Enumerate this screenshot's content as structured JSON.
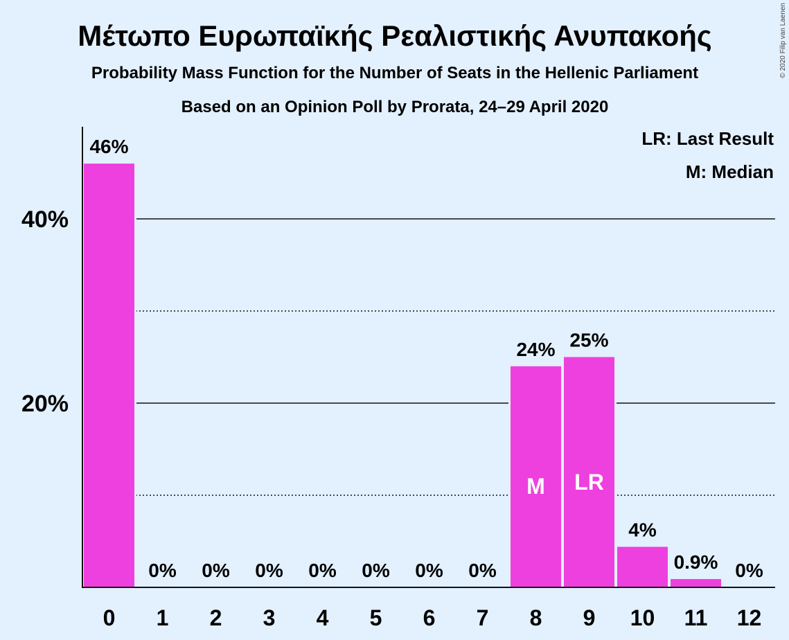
{
  "title": "Μέτωπο Ευρωπαϊκής Ρεαλιστικής Ανυπακοής",
  "subtitle1": "Probability Mass Function for the Number of Seats in the Hellenic Parliament",
  "subtitle2": "Based on an Opinion Poll by Prorata, 24–29 April 2020",
  "legend": {
    "lr": "LR: Last Result",
    "m": "M: Median"
  },
  "copyright": "© 2020 Filip van Laenen",
  "colors": {
    "bar": "#ee40de",
    "background": "#e3f0fd",
    "axis": "#111111"
  },
  "chart_data": {
    "type": "bar",
    "categories": [
      "0",
      "1",
      "2",
      "3",
      "4",
      "5",
      "6",
      "7",
      "8",
      "9",
      "10",
      "11",
      "12"
    ],
    "values": [
      46,
      0,
      0,
      0,
      0,
      0,
      0,
      0,
      24,
      25,
      4.4,
      0.9,
      0
    ],
    "data_labels": [
      "46%",
      "0%",
      "0%",
      "0%",
      "0%",
      "0%",
      "0%",
      "0%",
      "24%",
      "25%",
      "4%",
      "0.9%",
      "0%"
    ],
    "bar_markers": {
      "8": "M",
      "9": "LR"
    },
    "y_ticks": [
      {
        "value": 20,
        "label": "20%"
      },
      {
        "value": 40,
        "label": "40%"
      }
    ],
    "minor_gridlines": [
      10,
      30
    ],
    "major_gridlines": [
      20,
      40
    ],
    "ylim": [
      0,
      50
    ],
    "legend_position": "top-right"
  }
}
